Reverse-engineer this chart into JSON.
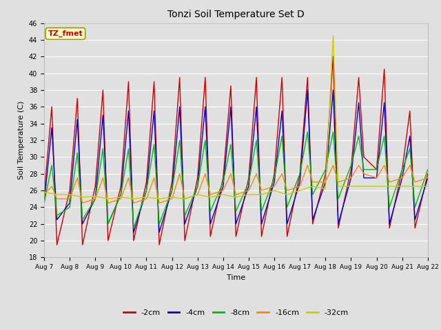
{
  "title": "Tonzi Soil Temperature Set D",
  "xlabel": "Time",
  "ylabel": "Soil Temperature (C)",
  "ylim": [
    18,
    46
  ],
  "yticks": [
    18,
    20,
    22,
    24,
    26,
    28,
    30,
    32,
    34,
    36,
    38,
    40,
    42,
    44,
    46
  ],
  "xlim_days": [
    0,
    15
  ],
  "background_color": "#e0e0e0",
  "axes_bg_color": "#e0e0e0",
  "legend_entries": [
    "-2cm",
    "-4cm",
    "-8cm",
    "-16cm",
    "-32cm"
  ],
  "legend_colors": [
    "#cc0000",
    "#0000cc",
    "#00bb00",
    "#ff8800",
    "#cccc00"
  ],
  "annotation_text": "TZ_fmet",
  "annotation_color": "#cc0000",
  "annotation_bg": "#ffffcc",
  "annotation_border": "#999900",
  "series": {
    "neg2cm": {
      "color": "#cc0000",
      "label": "-2cm",
      "days": [
        0,
        0.3,
        0.5,
        1,
        1.3,
        1.5,
        2,
        2.3,
        2.5,
        3,
        3.3,
        3.5,
        4,
        4.3,
        4.5,
        5,
        5.3,
        5.5,
        6,
        6.3,
        6.5,
        7,
        7.3,
        7.5,
        8,
        8.3,
        8.5,
        9,
        9.3,
        9.5,
        10,
        10.3,
        10.5,
        11,
        11.3,
        11.5,
        12,
        12.3,
        12.5,
        13,
        13.3,
        13.5,
        14,
        14.3,
        14.5,
        15
      ],
      "vals": [
        25.5,
        36.0,
        19.5,
        26.0,
        37.0,
        19.5,
        26.5,
        38.0,
        20.0,
        26.5,
        39.0,
        20.0,
        27.0,
        39.0,
        19.5,
        27.0,
        39.5,
        20.0,
        27.5,
        39.5,
        20.5,
        27.5,
        38.5,
        20.5,
        27.5,
        39.5,
        20.5,
        28.0,
        39.5,
        20.5,
        28.0,
        39.5,
        22.0,
        28.0,
        42.0,
        21.5,
        28.5,
        39.5,
        30.0,
        28.5,
        40.5,
        21.5,
        28.5,
        35.5,
        21.5,
        28.0
      ]
    },
    "neg4cm": {
      "color": "#0000cc",
      "label": "-4cm",
      "days": [
        0,
        0.3,
        0.5,
        1,
        1.3,
        1.5,
        2,
        2.3,
        2.5,
        3,
        3.3,
        3.5,
        4,
        4.3,
        4.5,
        5,
        5.3,
        5.5,
        6,
        6.3,
        6.5,
        7,
        7.3,
        7.5,
        8,
        8.3,
        8.5,
        9,
        9.3,
        9.5,
        10,
        10.3,
        10.5,
        11,
        11.3,
        11.5,
        12,
        12.3,
        12.5,
        13,
        13.3,
        13.5,
        14,
        14.3,
        14.5,
        15
      ],
      "vals": [
        24.5,
        33.5,
        22.5,
        24.5,
        34.5,
        22.0,
        25.0,
        35.0,
        22.0,
        25.5,
        35.5,
        21.0,
        26.0,
        35.5,
        21.0,
        26.0,
        36.0,
        22.0,
        26.5,
        36.0,
        22.0,
        26.5,
        36.0,
        22.0,
        26.5,
        36.0,
        22.0,
        27.0,
        35.5,
        22.0,
        27.0,
        38.0,
        22.5,
        27.0,
        38.0,
        22.0,
        27.5,
        36.5,
        27.5,
        27.5,
        36.5,
        22.0,
        27.5,
        32.5,
        22.5,
        27.5
      ]
    },
    "neg8cm": {
      "color": "#00bb00",
      "label": "-8cm",
      "days": [
        0,
        0.3,
        0.5,
        1,
        1.3,
        1.5,
        2,
        2.3,
        2.5,
        3,
        3.3,
        3.5,
        4,
        4.3,
        4.5,
        5,
        5.3,
        5.5,
        6,
        6.3,
        6.5,
        7,
        7.3,
        7.5,
        8,
        8.3,
        8.5,
        9,
        9.3,
        9.5,
        10,
        10.3,
        10.5,
        11,
        11.3,
        11.5,
        12,
        12.3,
        12.5,
        13,
        13.3,
        13.5,
        14,
        14.3,
        14.5,
        15
      ],
      "vals": [
        24.5,
        29.0,
        23.0,
        24.0,
        30.5,
        22.5,
        25.0,
        31.0,
        22.0,
        25.5,
        31.0,
        21.5,
        26.0,
        31.5,
        22.0,
        26.0,
        32.0,
        23.0,
        26.5,
        32.0,
        23.5,
        27.0,
        31.5,
        23.5,
        27.0,
        32.0,
        23.5,
        27.5,
        32.5,
        24.0,
        28.0,
        33.0,
        25.5,
        28.5,
        33.0,
        25.0,
        29.0,
        32.5,
        28.5,
        28.5,
        32.5,
        24.0,
        28.5,
        31.0,
        24.0,
        28.5
      ]
    },
    "neg16cm": {
      "color": "#ff8800",
      "label": "-16cm",
      "days": [
        0,
        0.3,
        0.5,
        1,
        1.3,
        1.5,
        2,
        2.3,
        2.5,
        3,
        3.3,
        3.5,
        4,
        4.3,
        4.5,
        5,
        5.3,
        5.5,
        6,
        6.3,
        6.5,
        7,
        7.3,
        7.5,
        8,
        8.3,
        8.5,
        9,
        9.3,
        9.5,
        10,
        10.3,
        10.5,
        11,
        11.3,
        11.5,
        12,
        12.3,
        12.5,
        13,
        13.3,
        13.5,
        14,
        14.3,
        14.5,
        15
      ],
      "vals": [
        25.5,
        26.5,
        25.0,
        25.0,
        27.5,
        24.5,
        25.0,
        27.5,
        24.5,
        25.0,
        27.5,
        24.5,
        25.0,
        27.5,
        24.5,
        25.0,
        28.0,
        25.0,
        25.5,
        28.0,
        25.5,
        26.0,
        28.0,
        25.5,
        26.0,
        28.0,
        26.0,
        26.5,
        28.0,
        26.0,
        26.5,
        29.0,
        27.0,
        27.0,
        29.0,
        27.0,
        27.5,
        29.0,
        28.0,
        27.5,
        29.0,
        27.0,
        27.5,
        29.0,
        27.0,
        27.5
      ]
    },
    "neg32cm": {
      "color": "#cccc00",
      "label": "-32cm",
      "days": [
        0,
        0.5,
        1,
        1.5,
        2,
        2.5,
        3,
        3.5,
        4,
        4.5,
        5,
        5.5,
        6,
        6.5,
        7,
        7.5,
        8,
        8.5,
        9,
        9.5,
        10,
        10.5,
        11,
        11.3,
        11.5,
        12,
        12.5,
        13,
        13.5,
        14,
        14.5,
        15
      ],
      "vals": [
        25.8,
        25.5,
        25.5,
        25.2,
        25.3,
        25.0,
        25.2,
        25.0,
        25.2,
        25.0,
        25.2,
        25.0,
        25.5,
        25.2,
        25.5,
        25.2,
        25.5,
        25.5,
        26.0,
        25.5,
        26.0,
        26.5,
        26.2,
        44.5,
        26.5,
        26.5,
        26.5,
        26.5,
        26.5,
        26.5,
        26.5,
        26.5
      ]
    }
  },
  "xtick_positions": [
    0,
    1,
    2,
    3,
    4,
    5,
    6,
    7,
    8,
    9,
    10,
    11,
    12,
    13,
    14,
    15
  ],
  "xtick_labels": [
    "Aug 7",
    "Aug 8",
    "Aug 9",
    "Aug 10",
    "Aug 11",
    "Aug 12",
    "Aug 13",
    "Aug 14",
    "Aug 15",
    "Aug 16",
    "Aug 17",
    "Aug 18",
    "Aug 19",
    "Aug 20",
    "Aug 21",
    "Aug 22"
  ]
}
